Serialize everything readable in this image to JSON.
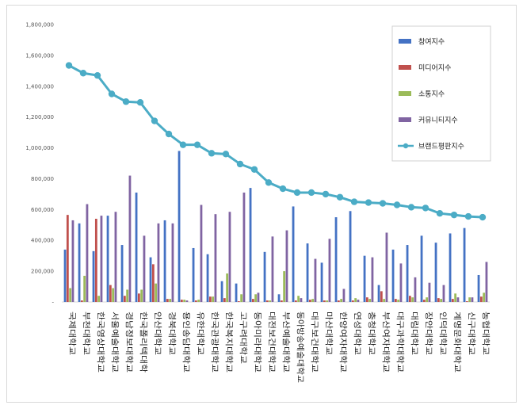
{
  "chart_data": {
    "type": "bar",
    "ylim": [
      0,
      1800000
    ],
    "ytick_step": 200000,
    "ytick_labels": [
      "-",
      "200,000",
      "400,000",
      "600,000",
      "800,000",
      "1,000,000",
      "1,200,000",
      "1,400,000",
      "1,600,000",
      "1,800,000"
    ],
    "grid": false,
    "legend_position": "top-right",
    "categories": [
      "국제대학교",
      "부천대학교",
      "한국영상대학교",
      "서울예술대학교",
      "경남정보대학교",
      "한국폴리텍대학",
      "안산대학교",
      "경북대학교",
      "용인송담대학교",
      "유한대학교",
      "한국관광대학교",
      "한국복지대학교",
      "고구려대학교",
      "동아미라대학교",
      "대전보건대학교",
      "부산예술대학교",
      "동아방송예술대학교",
      "대구보건대학교",
      "마산대학교",
      "한양여자대학교",
      "연성대학교",
      "충청대학교",
      "부산여자대학교",
      "대구과학대학교",
      "대림대학교",
      "장안대학교",
      "인덕대학교",
      "계명문화대학교",
      "신구대학교",
      "농협대학교"
    ],
    "series": [
      {
        "name": "참여지수",
        "color": "#4472c4",
        "kind": "bar",
        "values": [
          340000,
          510000,
          330000,
          560000,
          370000,
          710000,
          290000,
          530000,
          980000,
          350000,
          310000,
          135000,
          120000,
          740000,
          325000,
          50000,
          620000,
          380000,
          255000,
          550000,
          590000,
          300000,
          110000,
          340000,
          370000,
          430000,
          385000,
          445000,
          480000,
          175000
        ]
      },
      {
        "name": "미디어지수",
        "color": "#c0504d",
        "kind": "bar",
        "values": [
          565000,
          10000,
          540000,
          110000,
          40000,
          55000,
          245000,
          20000,
          15000,
          10000,
          35000,
          25000,
          5000,
          20000,
          10000,
          10000,
          10000,
          15000,
          10000,
          10000,
          10000,
          30000,
          70000,
          20000,
          40000,
          15000,
          25000,
          20000,
          5000,
          35000
        ]
      },
      {
        "name": "소통지수",
        "color": "#9bbb59",
        "kind": "bar",
        "values": [
          90000,
          170000,
          40000,
          90000,
          80000,
          80000,
          120000,
          20000,
          15000,
          15000,
          35000,
          185000,
          50000,
          50000,
          10000,
          200000,
          40000,
          20000,
          10000,
          20000,
          25000,
          20000,
          20000,
          15000,
          30000,
          30000,
          20000,
          55000,
          30000,
          60000
        ]
      },
      {
        "name": "커뮤니티지수",
        "color": "#8064a2",
        "kind": "bar",
        "values": [
          530000,
          635000,
          560000,
          585000,
          820000,
          430000,
          510000,
          510000,
          10000,
          630000,
          570000,
          585000,
          710000,
          60000,
          425000,
          465000,
          25000,
          280000,
          410000,
          85000,
          15000,
          290000,
          450000,
          250000,
          160000,
          125000,
          110000,
          30000,
          30000,
          260000
        ]
      },
      {
        "name": "브랜드평판지수",
        "color": "#4bacc6",
        "kind": "line",
        "values": [
          1535000,
          1485000,
          1470000,
          1350000,
          1300000,
          1295000,
          1175000,
          1090000,
          1020000,
          1020000,
          965000,
          960000,
          895000,
          860000,
          775000,
          735000,
          710000,
          710000,
          700000,
          680000,
          650000,
          645000,
          640000,
          630000,
          615000,
          610000,
          575000,
          565000,
          555000,
          550000
        ]
      }
    ]
  }
}
